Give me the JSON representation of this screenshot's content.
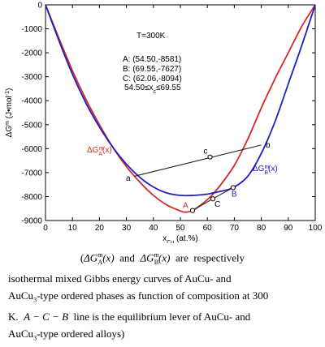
{
  "chart_data": {
    "type": "line",
    "title": "",
    "xlabel": "x",
    "xlabel_sub": "Cu",
    "xlabel_unit": " (at.%)",
    "ylabel": "ΔG",
    "ylabel_sup": "m",
    "ylabel_unit": " (J•mol",
    "ylabel_unit_sup": "-1",
    "ylabel_unit_end": ")",
    "xlim": [
      0,
      100
    ],
    "ylim": [
      -9000,
      0
    ],
    "xticks": [
      0,
      10,
      20,
      30,
      40,
      50,
      60,
      70,
      80,
      90,
      100
    ],
    "yticks": [
      0,
      -1000,
      -2000,
      -3000,
      -4000,
      -5000,
      -6000,
      -7000,
      -8000,
      -9000
    ],
    "grid": false,
    "legend": "none",
    "series": [
      {
        "name": "ΔG^m_A(x)",
        "color": "#d62728",
        "x": [
          0,
          5,
          10,
          15,
          20,
          25,
          30,
          35,
          40,
          45,
          50,
          52,
          54.5,
          57,
          60,
          62.06,
          65,
          70,
          75,
          80,
          85,
          90,
          95,
          100
        ],
        "y": [
          0,
          -1400,
          -2750,
          -3950,
          -5000,
          -5950,
          -6750,
          -7400,
          -7950,
          -8350,
          -8600,
          -8650,
          -8580,
          -8400,
          -8130,
          -7900,
          -7500,
          -6700,
          -5600,
          -4300,
          -3100,
          -2000,
          -900,
          0
        ]
      },
      {
        "name": "ΔG^m_B(x)",
        "color": "#1f1fbf",
        "x": [
          0,
          5,
          10,
          15,
          20,
          25,
          30,
          35,
          40,
          45,
          50,
          55,
          60,
          62.06,
          65,
          69.55,
          75,
          80,
          85,
          90,
          95,
          100
        ],
        "y": [
          0,
          -1500,
          -2900,
          -4100,
          -5100,
          -5950,
          -6650,
          -7200,
          -7600,
          -7850,
          -7950,
          -7950,
          -7900,
          -7850,
          -7780,
          -7627,
          -7150,
          -6200,
          -4900,
          -3300,
          -1700,
          0
        ]
      }
    ],
    "lines": [
      {
        "name": "lever a-b",
        "x": [
          33,
          80
        ],
        "y": [
          -7150,
          -5850
        ]
      },
      {
        "name": "lever A-C-B",
        "x": [
          54.5,
          62.06,
          69.55
        ],
        "y": [
          -8581,
          -8094,
          -7627
        ]
      }
    ],
    "points": [
      {
        "label": "c",
        "x": 61,
        "y": -6350,
        "color": "#000000"
      },
      {
        "label": "A",
        "x": 54.5,
        "y": -8581,
        "color": "#d62728"
      },
      {
        "label": "C",
        "x": 62.06,
        "y": -8094,
        "color": "#000000"
      },
      {
        "label": "B",
        "x": 69.55,
        "y": -7627,
        "color": "#1f1fbf"
      }
    ],
    "point_labels": {
      "a": "a",
      "b": "b"
    },
    "annotations": {
      "temp": "T=300K",
      "pA": "A: (54.50,-8581)",
      "pB": "B: (69.55,-7627)",
      "pC": "C: (62.06,-8094)",
      "range": "54.50≤x",
      "range_sub": "c",
      "range_end": "≤69.55"
    },
    "curve_labels": {
      "A_main": "ΔG",
      "A_sup": "m",
      "A_sub": "A",
      "A_end": "(x)",
      "B_main": "ΔG",
      "B_sup": "m",
      "B_sub": "B",
      "B_end": "(x)"
    }
  },
  "caption": {
    "l1_open": "(",
    "l1_gA": "ΔG",
    "l1_gA_sup": "m",
    "l1_gA_sub": "A",
    "l1_x1": "(x)",
    "l1_and": "  and  ",
    "l1_gB": "ΔG",
    "l1_gB_sup": "m",
    "l1_gB_sub": "B",
    "l1_x2": "(x)",
    "l1_rest": "  are  respectively",
    "l2": "isothermal mixed Gibbs energy curves of AuCu- and",
    "l3a": "AuCu",
    "l3_sub": "3",
    "l3b": "-type ordered phases as function of composition at 300",
    "l4a": "K.  ",
    "l4_lever": "A − C − B",
    "l4b": "  line is the equilibrium lever of AuCu- and",
    "l5a": "AuCu",
    "l5_sub": "3",
    "l5b": "-type ordered alloys)"
  }
}
